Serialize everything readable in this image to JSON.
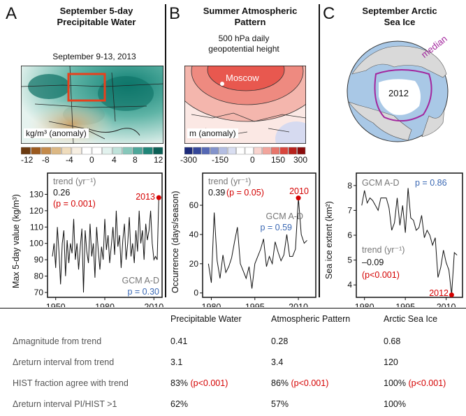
{
  "panels": [
    {
      "letter": "A",
      "title_line1": "September 5-day",
      "title_line2": "Precipitable Water",
      "map_caption": "September 9-13, 2013",
      "map_unit": "kg/m³ (anomaly)",
      "colorbar_ticks": [
        "-12",
        "-8",
        "-4",
        "0",
        "4",
        "8",
        "12"
      ]
    },
    {
      "letter": "B",
      "title_line1": "Summer Atmospheric",
      "title_line2": "Pattern",
      "map_caption_line1": "500 hPa daily",
      "map_caption_line2": "geopotential height",
      "map_label": "Moscow",
      "map_unit": "m (anomaly)",
      "colorbar_ticks": [
        "-300",
        "-150",
        "0",
        "150",
        "300"
      ]
    },
    {
      "letter": "C",
      "title_line1": "September Arctic",
      "title_line2": "Sea Ice",
      "map_label_median": "median",
      "map_label_year": "2012"
    }
  ],
  "chart_data": [
    {
      "type": "line",
      "ylabel": "Max 5-day value (kg/m³)",
      "xticks": [
        "1950",
        "1980",
        "2010"
      ],
      "yticks": [
        "70",
        "80",
        "90",
        "100",
        "110",
        "120",
        "130"
      ],
      "xlim": [
        1945,
        2015
      ],
      "ylim": [
        67,
        143
      ],
      "annotations": {
        "trend_label": "trend (yr⁻¹)",
        "trend_value": "0.26",
        "trend_p": "(p = 0.001)",
        "highlight": "2013",
        "gcm_label": "GCM A-D",
        "gcm_p": "p = 0.30"
      },
      "x": [
        1948,
        1949,
        1950,
        1951,
        1952,
        1953,
        1954,
        1955,
        1956,
        1957,
        1958,
        1959,
        1960,
        1961,
        1962,
        1963,
        1964,
        1965,
        1966,
        1967,
        1968,
        1969,
        1970,
        1971,
        1972,
        1973,
        1974,
        1975,
        1976,
        1977,
        1978,
        1979,
        1980,
        1981,
        1982,
        1983,
        1984,
        1985,
        1986,
        1987,
        1988,
        1989,
        1990,
        1991,
        1992,
        1993,
        1994,
        1995,
        1996,
        1997,
        1998,
        1999,
        2000,
        2001,
        2002,
        2003,
        2004,
        2005,
        2006,
        2007,
        2008,
        2009,
        2010,
        2011,
        2012,
        2013
      ],
      "values": [
        92,
        100,
        85,
        110,
        95,
        75,
        100,
        108,
        80,
        102,
        88,
        100,
        94,
        115,
        90,
        100,
        84,
        98,
        109,
        70,
        108,
        95,
        88,
        112,
        92,
        100,
        79,
        110,
        96,
        84,
        98,
        90,
        115,
        96,
        105,
        88,
        99,
        110,
        93,
        120,
        98,
        105,
        85,
        102,
        112,
        90,
        100,
        116,
        92,
        100,
        88,
        108,
        95,
        120,
        100,
        108,
        90,
        112,
        102,
        108,
        120,
        100,
        90,
        92,
        90,
        128
      ]
    },
    {
      "type": "line",
      "ylabel": "Occurrence (days/season)",
      "xticks": [
        "1980",
        "1995",
        "2010"
      ],
      "yticks": [
        "0",
        "20",
        "40",
        "60"
      ],
      "xlim": [
        1977,
        2016
      ],
      "ylim": [
        -3,
        82
      ],
      "annotations": {
        "trend_label": "trend (yr⁻¹)",
        "trend_value": "0.39",
        "trend_p": "(p = 0.05)",
        "highlight": "2010",
        "gcm_label": "GCM A-D",
        "gcm_p": "p = 0.59"
      },
      "x": [
        1979,
        1980,
        1981,
        1982,
        1983,
        1984,
        1985,
        1986,
        1987,
        1988,
        1989,
        1990,
        1991,
        1992,
        1993,
        1994,
        1995,
        1996,
        1997,
        1998,
        1999,
        2000,
        2001,
        2002,
        2003,
        2004,
        2005,
        2006,
        2007,
        2008,
        2009,
        2010,
        2011,
        2012,
        2013
      ],
      "values": [
        20,
        7,
        55,
        22,
        10,
        26,
        14,
        18,
        24,
        35,
        45,
        20,
        15,
        10,
        18,
        3,
        20,
        25,
        30,
        37,
        18,
        25,
        20,
        35,
        28,
        22,
        26,
        40,
        25,
        25,
        30,
        65,
        40,
        34,
        36
      ]
    },
    {
      "type": "line",
      "ylabel": "Sea ice extent (km²)",
      "xticks": [
        "1980",
        "1995",
        "2010"
      ],
      "yticks": [
        "4",
        "5",
        "6",
        "7",
        "8"
      ],
      "xlim": [
        1977,
        2016
      ],
      "ylim": [
        3.5,
        8.5
      ],
      "annotations": {
        "gcm_label": "GCM A-D",
        "gcm_p": "p = 0.86",
        "trend_label": "trend (yr⁻¹)",
        "trend_value": "–0.09",
        "trend_p": "(p<0.001)",
        "highlight": "2012"
      },
      "x": [
        1979,
        1980,
        1981,
        1982,
        1983,
        1984,
        1985,
        1986,
        1987,
        1988,
        1989,
        1990,
        1991,
        1992,
        1993,
        1994,
        1995,
        1996,
        1997,
        1998,
        1999,
        2000,
        2001,
        2002,
        2003,
        2004,
        2005,
        2006,
        2007,
        2008,
        2009,
        2010,
        2011,
        2012,
        2013,
        2014
      ],
      "values": [
        7.2,
        7.8,
        7.3,
        7.5,
        7.4,
        7.2,
        7.0,
        7.5,
        7.5,
        7.5,
        7.1,
        6.2,
        6.5,
        7.5,
        6.4,
        7.2,
        6.1,
        7.9,
        6.7,
        6.6,
        6.2,
        6.3,
        6.8,
        5.9,
        6.2,
        6.0,
        5.6,
        5.9,
        4.3,
        4.7,
        5.4,
        4.9,
        4.6,
        3.6,
        5.3,
        5.2
      ]
    }
  ],
  "table": {
    "headers": [
      "Precipitable Water",
      "Atmospheric Pattern",
      "Arctic Sea Ice"
    ],
    "rows": [
      {
        "label": "Δmagnitude from trend",
        "v1": "0.41",
        "v2": "0.28",
        "v3": "0.68"
      },
      {
        "label": "Δreturn interval from trend",
        "v1": "3.1",
        "v2": "3.4",
        "v3": "120"
      },
      {
        "label": "HIST fraction agree with trend",
        "v1": "83%",
        "p1": "(p<0.001)",
        "v2": "86%",
        "p2": "(p<0.001)",
        "v3": "100%",
        "p3": "(p<0.001)"
      },
      {
        "label": "Δreturn interval PI/HIST >1",
        "v1": "62%",
        "v2": "57%",
        "v3": "100%"
      }
    ]
  },
  "colors": {
    "accent_red": "#d40000",
    "blue": "#3a68b4",
    "gray": "#777777"
  }
}
